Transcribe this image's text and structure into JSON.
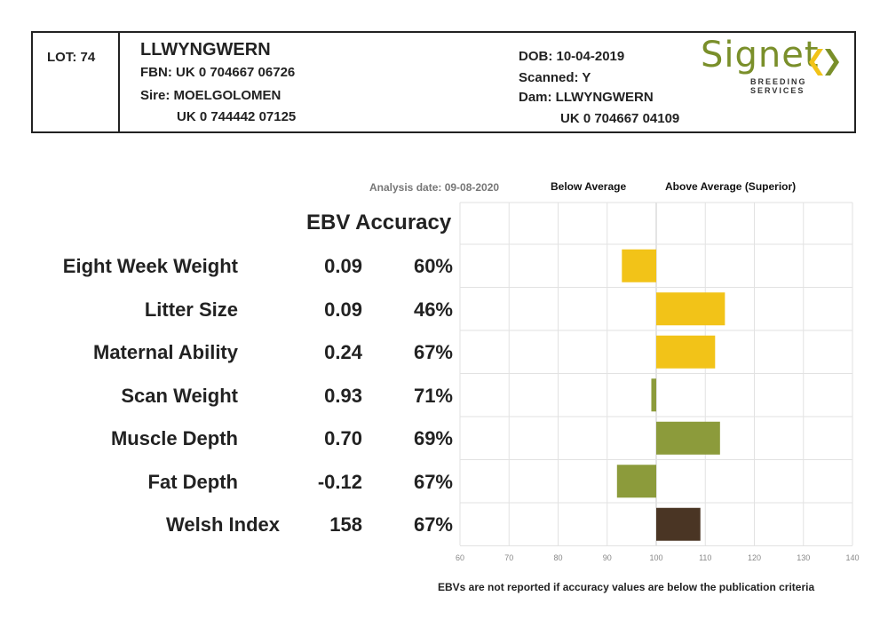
{
  "header": {
    "lot": "LOT: 74",
    "name": "LLWYNGWERN",
    "fbn": "FBN: UK 0 704667 06726",
    "sire": "Sire: MOELGOLOMEN",
    "sire_id": "UK 0 744442 07125",
    "dob": "DOB: 10-04-2019",
    "scanned": "Scanned: Y",
    "dam": "Dam: LLWYNGWERN",
    "dam_id": "UK 0 704667 04109"
  },
  "logo": {
    "word": "Signet",
    "sub": "BREEDING SERVICES",
    "colors": {
      "green": "#7a8f2a",
      "yellow": "#f2c318"
    }
  },
  "analysis_date": "Analysis date: 09-08-2020",
  "legend": {
    "below": "Below Average",
    "above": "Above Average (Superior)"
  },
  "column_header": "EBV Accuracy",
  "rows": [
    {
      "trait": "Eight Week Weight",
      "ebv": "0.09",
      "accuracy": "60%"
    },
    {
      "trait": "Litter Size",
      "ebv": "0.09",
      "accuracy": "46%"
    },
    {
      "trait": "Maternal Ability",
      "ebv": "0.24",
      "accuracy": "67%"
    },
    {
      "trait": "Scan Weight",
      "ebv": "0.93",
      "accuracy": "71%"
    },
    {
      "trait": "Muscle Depth",
      "ebv": "0.70",
      "accuracy": "69%"
    },
    {
      "trait": "Fat Depth",
      "ebv": "-0.12",
      "accuracy": "67%"
    },
    {
      "trait": "Welsh Index",
      "ebv": "158",
      "accuracy": "67%"
    }
  ],
  "footnote": "EBVs are not reported if accuracy values are below the publication criteria",
  "chart_data": {
    "type": "bar",
    "orientation": "horizontal",
    "baseline": 100,
    "categories": [
      "Eight Week Weight",
      "Litter Size",
      "Maternal Ability",
      "Scan Weight",
      "Muscle Depth",
      "Fat Depth",
      "Welsh Index"
    ],
    "values": [
      93,
      114,
      112,
      99,
      113,
      92,
      109
    ],
    "bar_colors": [
      "#f2c318",
      "#f2c318",
      "#f2c318",
      "#8c9b3b",
      "#8c9b3b",
      "#8c9b3b",
      "#4a3524"
    ],
    "xlim": [
      60,
      140
    ],
    "xticks": [
      60,
      70,
      80,
      90,
      100,
      110,
      120,
      130,
      140
    ],
    "grid": true,
    "grid_color": "#e2e2e2"
  }
}
